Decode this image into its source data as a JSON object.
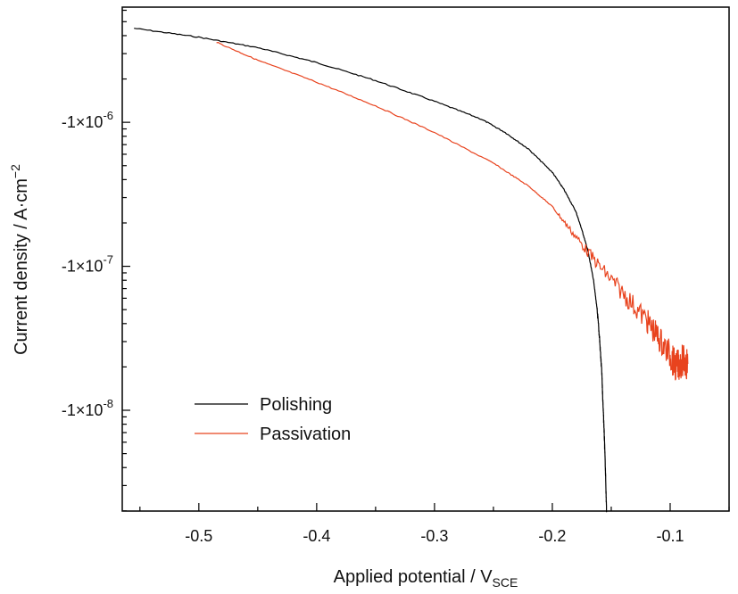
{
  "chart_data": {
    "type": "line",
    "xlabel": {
      "main": "Applied potential / V",
      "sub": "SCE"
    },
    "ylabel": {
      "main": "Current density / A·cm",
      "sup": "−2"
    },
    "xlim": [
      -0.565,
      -0.05
    ],
    "ylim_log10_abs": [
      -8.7,
      -5.2
    ],
    "y_scale": "log (magnitude of negative current density)",
    "xticks": [
      -0.5,
      -0.4,
      -0.3,
      -0.2,
      -0.1
    ],
    "xtick_labels": [
      "-0.5",
      "-0.4",
      "-0.3",
      "-0.2",
      "-0.1"
    ],
    "yticks": [
      -1e-06,
      -1e-07,
      -1e-08
    ],
    "ytick_labels": [
      {
        "prefix": "-1×10",
        "exp": "-6"
      },
      {
        "prefix": "-1×10",
        "exp": "-7"
      },
      {
        "prefix": "-1×10",
        "exp": "-8"
      }
    ],
    "legend_position": "bottom-left",
    "series": [
      {
        "name": "Polishing",
        "color": "#000000",
        "x": [
          -0.555,
          -0.5,
          -0.45,
          -0.4,
          -0.35,
          -0.3,
          -0.26,
          -0.24,
          -0.22,
          -0.2,
          -0.19,
          -0.18,
          -0.175,
          -0.17,
          -0.165,
          -0.162,
          -0.16,
          -0.158,
          -0.157,
          -0.156,
          -0.155,
          -0.154
        ],
        "y": [
          -4.5e-06,
          -3.9e-06,
          -3.3e-06,
          -2.6e-06,
          -1.95e-06,
          -1.4e-06,
          -1.05e-06,
          -8.5e-07,
          -6.5e-07,
          -4.5e-07,
          -3.4e-07,
          -2.4e-07,
          -1.8e-07,
          -1.3e-07,
          -8e-08,
          -5e-08,
          -3.2e-08,
          -1.8e-08,
          -1.1e-08,
          -7e-09,
          -4e-09,
          -2e-09
        ]
      },
      {
        "name": "Passivation",
        "color": "#e8431e",
        "x": [
          -0.485,
          -0.45,
          -0.4,
          -0.35,
          -0.3,
          -0.25,
          -0.22,
          -0.2,
          -0.18,
          -0.16,
          -0.14,
          -0.12,
          -0.11,
          -0.1,
          -0.095,
          -0.09,
          -0.085
        ],
        "y": [
          -3.6e-06,
          -2.7e-06,
          -1.9e-06,
          -1.3e-06,
          -8.5e-07,
          -5.2e-07,
          -3.6e-07,
          -2.6e-07,
          -1.6e-07,
          -1e-07,
          -6.5e-08,
          -4.2e-08,
          -3.2e-08,
          -2.4e-08,
          -2e-08,
          -2.2e-08,
          -2.1e-08
        ]
      }
    ]
  }
}
